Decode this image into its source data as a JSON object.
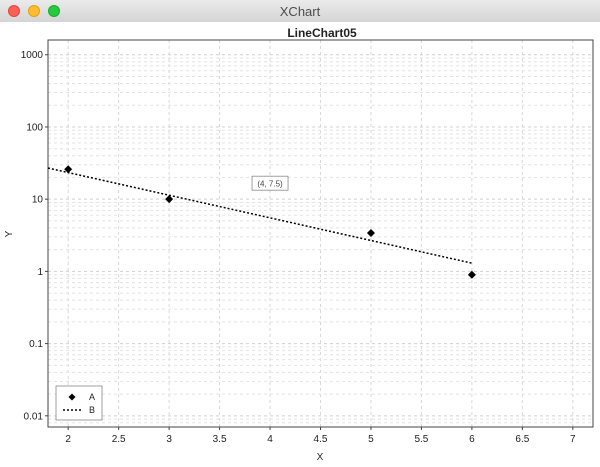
{
  "window": {
    "title": "XChart"
  },
  "chart_data": {
    "type": "line",
    "title": "LineChart05",
    "xlabel": "X",
    "ylabel": "Y",
    "xlim": [
      1.8,
      7.2
    ],
    "ylim": [
      0.007,
      1600
    ],
    "yscale": "log",
    "x_ticks": [
      2,
      2.5,
      3,
      3.5,
      4,
      4.5,
      5,
      5.5,
      6,
      6.5,
      7
    ],
    "x_tick_labels": [
      "2",
      "2.5",
      "3",
      "3.5",
      "4",
      "4.5",
      "5",
      "5.5",
      "6",
      "6.5",
      "7"
    ],
    "y_ticks": [
      0.01,
      0.1,
      1,
      10,
      100,
      1000
    ],
    "y_tick_labels": [
      "0.01",
      "0.1",
      "1",
      "10",
      "100",
      "1000"
    ],
    "grid": true,
    "legend": "bottom-left",
    "series": [
      {
        "name": "A",
        "marker": "diamond",
        "line": "none",
        "color": "#000000",
        "x": [
          2,
          3,
          5,
          6
        ],
        "y": [
          26,
          10,
          3.4,
          0.9
        ]
      },
      {
        "name": "B",
        "marker": "none",
        "line": "dotted",
        "color": "#000000",
        "x": [
          1.8,
          6
        ],
        "y": [
          27,
          1.3
        ]
      }
    ],
    "annotations": [
      {
        "text": "(4, 7.5)",
        "x": 4,
        "y": 7.5
      }
    ]
  }
}
